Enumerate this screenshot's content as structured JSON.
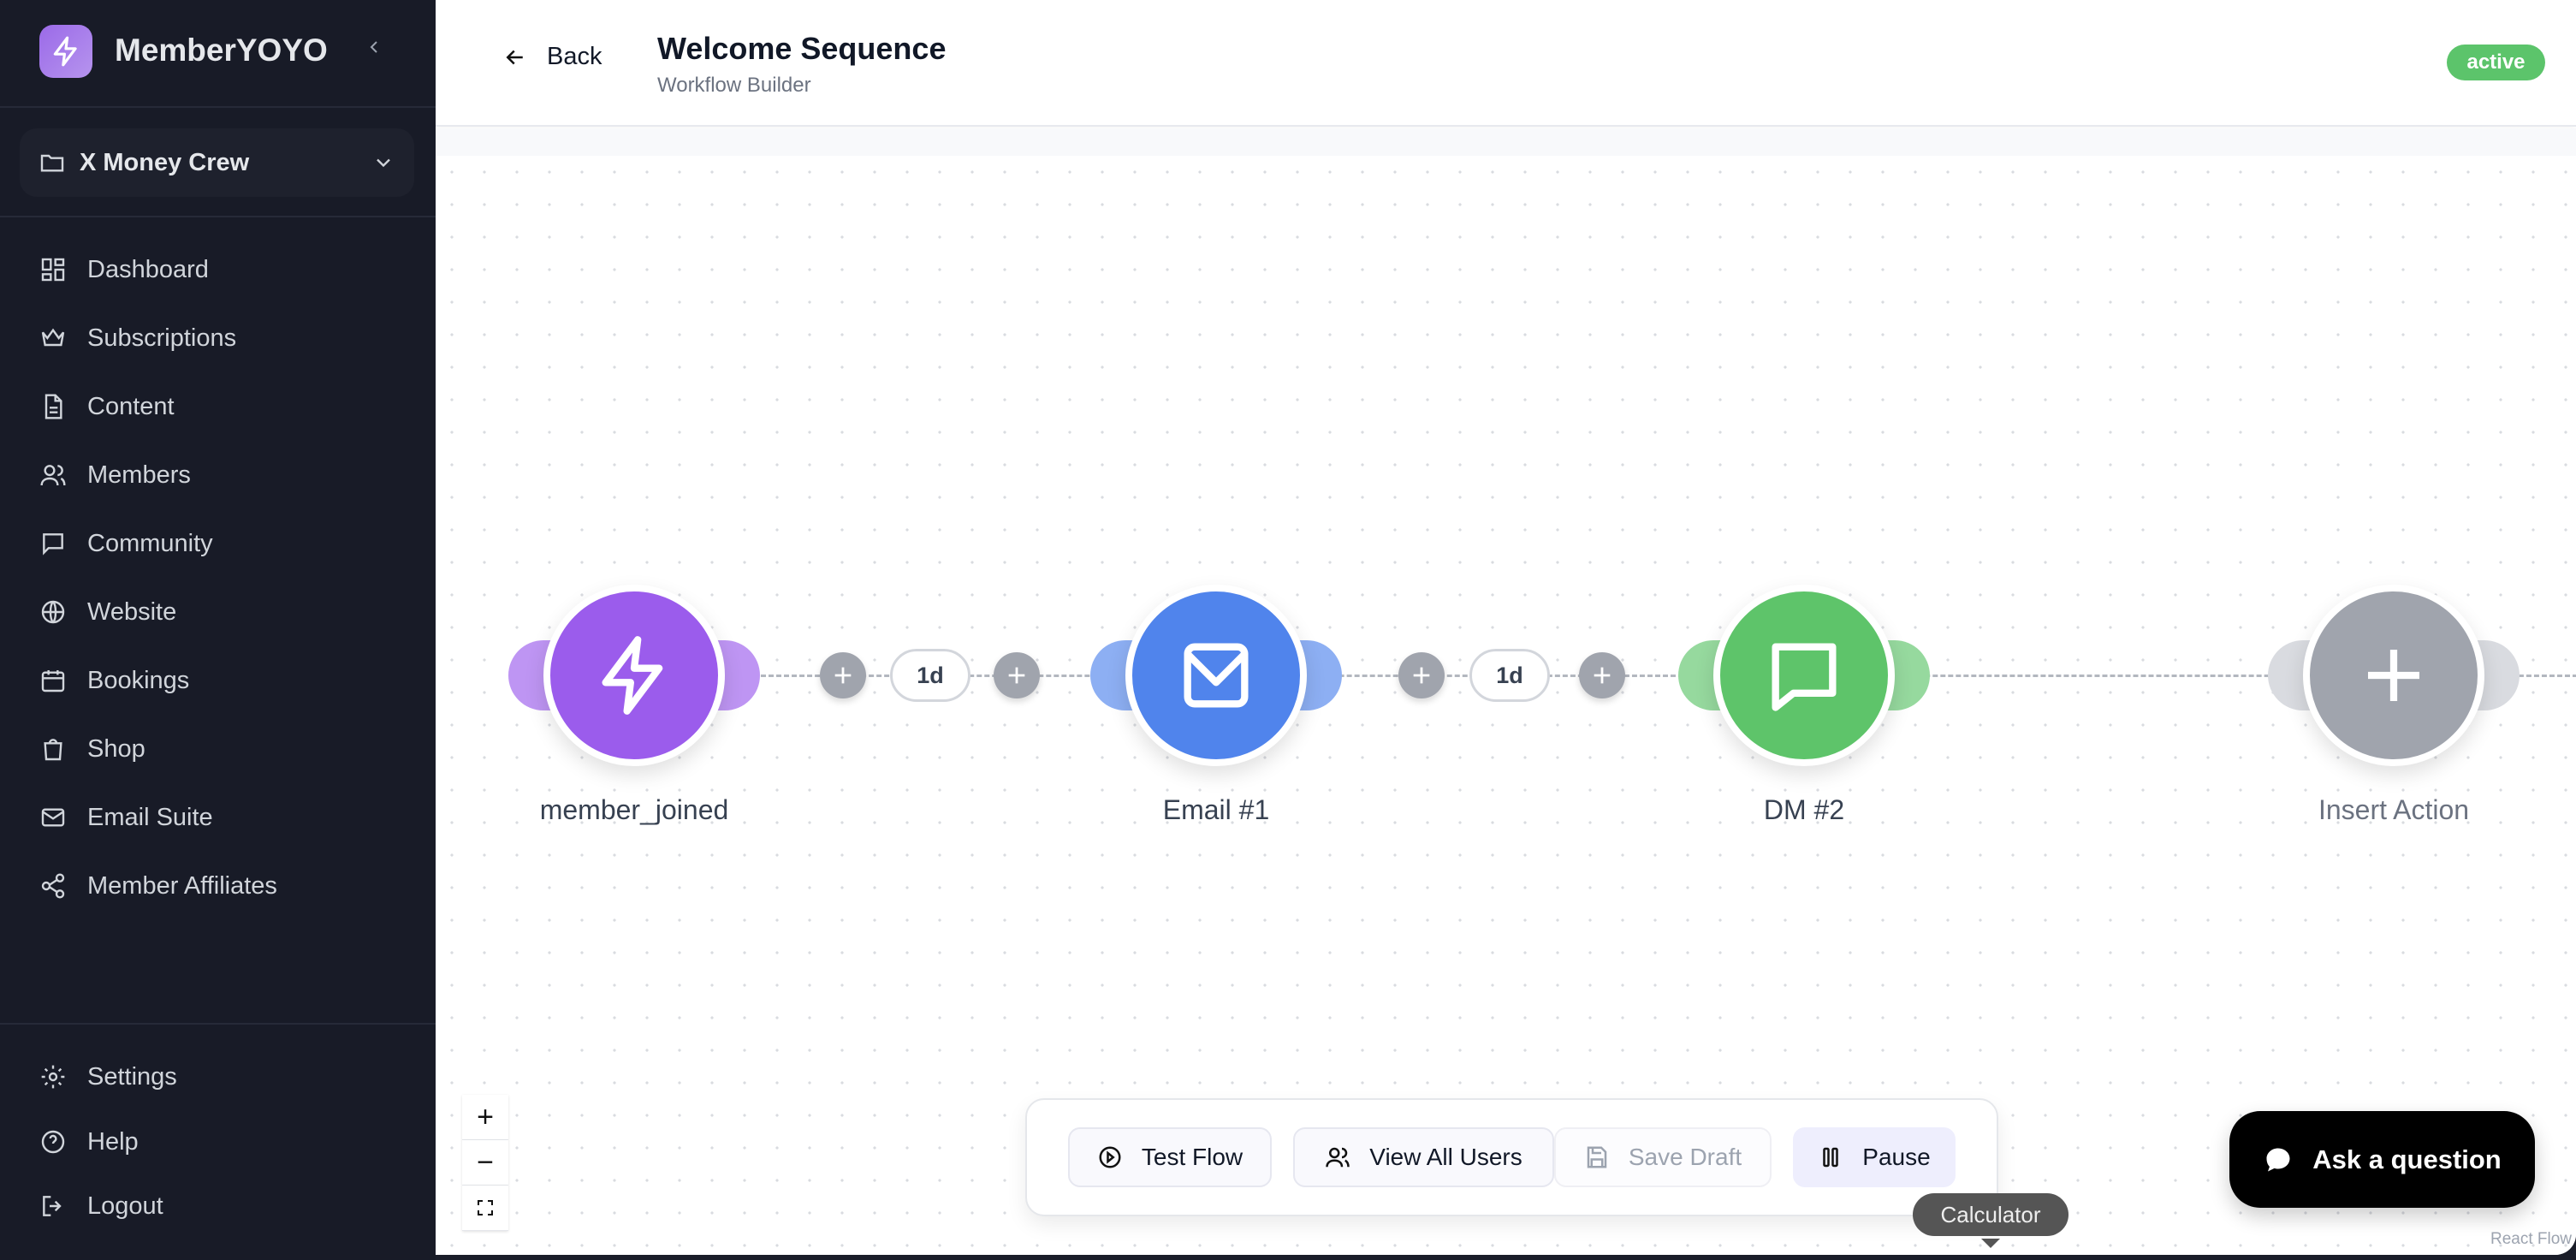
{
  "sidebar": {
    "brand": "MemberYOYO",
    "workspace": "X Money Crew",
    "items": [
      {
        "label": "Dashboard",
        "icon": "dashboard-icon"
      },
      {
        "label": "Subscriptions",
        "icon": "crown-icon"
      },
      {
        "label": "Content",
        "icon": "document-icon"
      },
      {
        "label": "Members",
        "icon": "users-icon"
      },
      {
        "label": "Community",
        "icon": "chat-icon"
      },
      {
        "label": "Website",
        "icon": "globe-icon"
      },
      {
        "label": "Bookings",
        "icon": "calendar-icon"
      },
      {
        "label": "Shop",
        "icon": "shopping-bag-icon"
      },
      {
        "label": "Email Suite",
        "icon": "mail-icon"
      },
      {
        "label": "Member Affiliates",
        "icon": "share-icon"
      }
    ],
    "bottom": [
      {
        "label": "Settings",
        "icon": "gear-icon"
      },
      {
        "label": "Help",
        "icon": "help-icon"
      },
      {
        "label": "Logout",
        "icon": "logout-icon"
      }
    ]
  },
  "header": {
    "back": "Back",
    "title": "Welcome Sequence",
    "subtitle": "Workflow Builder",
    "status": "active"
  },
  "flow": {
    "nodes": [
      {
        "label": "member_joined",
        "icon": "lightning-icon",
        "color": "#9b5cec"
      },
      {
        "label": "Email #1",
        "icon": "mail-icon",
        "color": "#5084ec"
      },
      {
        "label": "DM #2",
        "icon": "message-icon",
        "color": "#5ec46a"
      },
      {
        "label": "Insert Action",
        "icon": "plus-icon",
        "color": "#a0a4ad"
      }
    ],
    "delays": [
      "1d",
      "1d"
    ]
  },
  "toolbar": {
    "test_flow": "Test Flow",
    "view_users": "View All Users",
    "save_draft": "Save Draft",
    "pause": "Pause"
  },
  "tooltip": "Calculator",
  "chat": "Ask a question",
  "attribution": "React Flow"
}
